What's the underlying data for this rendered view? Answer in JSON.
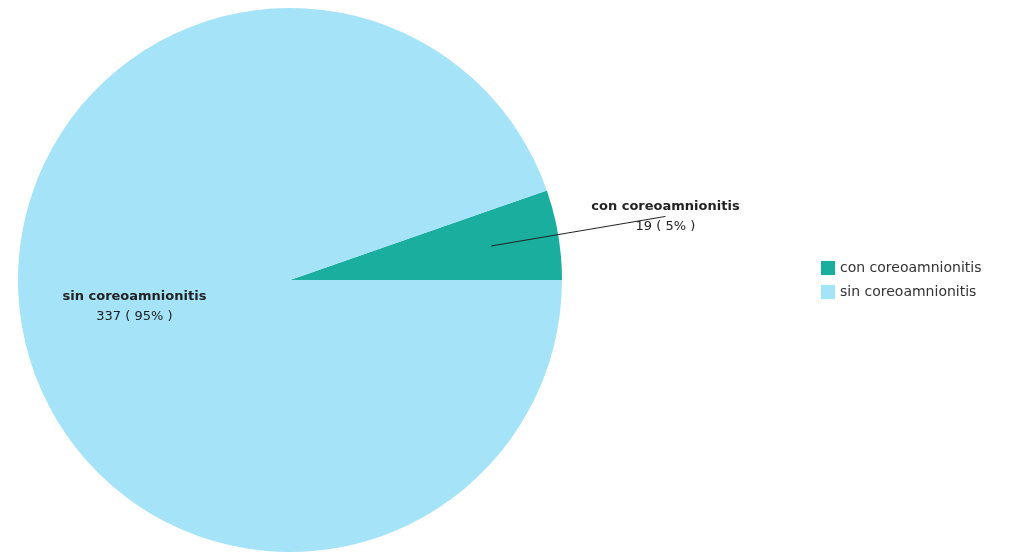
{
  "chart_data": {
    "type": "pie",
    "categories": [
      "con coreoamnionitis",
      "sin coreoamnionitis"
    ],
    "values": [
      19,
      337
    ],
    "colors": [
      "#1aae9f",
      "#a5e3f8"
    ],
    "value_labels": [
      "19 ( 5% )",
      "337 ( 95% )"
    ],
    "legend": "right"
  }
}
